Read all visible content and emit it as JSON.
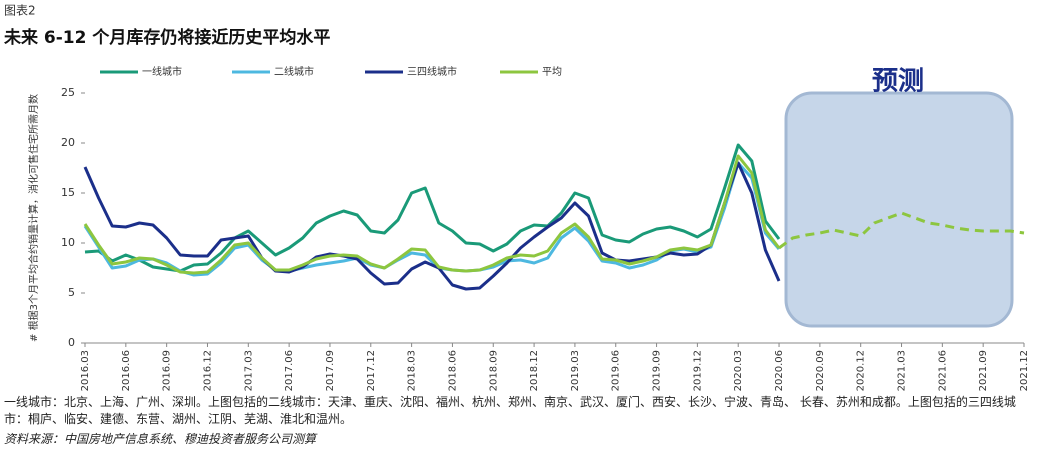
{
  "chart_data": {
    "type": "line",
    "figure_label": "图表2",
    "title": "未来 6-12 个月库存仍将接近历史平均水平",
    "y_label": "# 根据3个月平均合约销量计算，消化可售住宅所需月数",
    "legend": "top",
    "ylim": [
      0,
      25
    ],
    "yticks": [
      0,
      5,
      10,
      15,
      20,
      25
    ],
    "categories": [
      "2016.03",
      null,
      null,
      "2016.06",
      null,
      null,
      "2016.09",
      null,
      null,
      "2016.12",
      null,
      null,
      "2017.03",
      null,
      null,
      "2017.06",
      null,
      null,
      "2017.09",
      null,
      null,
      "2017.12",
      null,
      null,
      "2018.03",
      null,
      null,
      "2018.06",
      null,
      null,
      "2018.09",
      null,
      null,
      "2018.12",
      null,
      null,
      "2019.03",
      null,
      null,
      "2019.06",
      null,
      null,
      "2019.09",
      null,
      null,
      "2019.12",
      null,
      null,
      "2020.03",
      null,
      null,
      "2020.06",
      null,
      null,
      "2020.09",
      null,
      null,
      "2020.12",
      null,
      null,
      "2021.03",
      null,
      null,
      "2021.06",
      null,
      null,
      "2021.09",
      null,
      null,
      "2021.12"
    ],
    "series": [
      {
        "name": "一线城市",
        "color": "#1a9a78",
        "values": [
          9.1,
          9.2,
          8.2,
          8.8,
          8.3,
          7.6,
          7.4,
          7.2,
          7.8,
          7.9,
          9.0,
          10.5,
          11.2,
          10.0,
          8.8,
          9.5,
          10.5,
          12.0,
          12.7,
          13.2,
          12.8,
          11.2,
          11.0,
          12.3,
          15.0,
          15.5,
          12.0,
          11.2,
          10.0,
          9.9,
          9.2,
          9.9,
          11.2,
          11.8,
          11.7,
          13.0,
          15.0,
          14.5,
          10.8,
          10.3,
          10.1,
          10.9,
          11.4,
          11.6,
          11.2,
          10.6,
          11.4,
          15.5,
          19.8,
          18.2,
          12.2,
          10.4,
          null,
          null,
          null,
          null,
          null,
          null,
          null,
          null,
          null,
          null,
          null,
          null,
          null,
          null,
          null,
          null,
          null,
          null
        ]
      },
      {
        "name": "二线城市",
        "color": "#4db8e0",
        "values": [
          11.7,
          9.6,
          7.5,
          7.7,
          8.3,
          8.4,
          8.0,
          7.2,
          6.8,
          6.9,
          8.0,
          9.5,
          9.8,
          8.3,
          7.3,
          7.2,
          7.5,
          7.8,
          8.0,
          8.2,
          8.5,
          7.8,
          7.5,
          8.3,
          9.0,
          8.8,
          7.5,
          7.3,
          7.2,
          7.3,
          7.6,
          8.2,
          8.3,
          8.0,
          8.5,
          10.5,
          11.5,
          10.2,
          8.2,
          8.0,
          7.5,
          7.8,
          8.3,
          9.2,
          9.4,
          9.1,
          9.6,
          13.5,
          18.0,
          16.5,
          11.0,
          9.4,
          null,
          null,
          null,
          null,
          null,
          null,
          null,
          null,
          null,
          null,
          null,
          null,
          null,
          null,
          null,
          null,
          null,
          null
        ]
      },
      {
        "name": "三四线城市",
        "color": "#1b2f8a",
        "values": [
          17.6,
          14.5,
          11.7,
          11.6,
          12.0,
          11.8,
          10.5,
          8.8,
          8.7,
          8.7,
          10.3,
          10.5,
          10.7,
          8.5,
          7.2,
          7.1,
          7.6,
          8.6,
          8.9,
          8.7,
          8.4,
          7.0,
          5.9,
          6.0,
          7.4,
          8.1,
          7.5,
          5.8,
          5.4,
          5.5,
          6.7,
          8.0,
          9.5,
          10.6,
          11.6,
          12.5,
          14.0,
          12.7,
          9.0,
          8.3,
          8.2,
          8.4,
          8.6,
          9.0,
          8.8,
          8.9,
          9.8,
          14.0,
          18.0,
          15.0,
          9.3,
          6.2,
          null,
          null,
          null,
          null,
          null,
          null,
          null,
          null,
          null,
          null,
          null,
          null,
          null,
          null,
          null,
          null,
          null,
          null
        ]
      },
      {
        "name": "平均",
        "color": "#8dc63f",
        "values": [
          11.9,
          9.8,
          7.9,
          8.1,
          8.5,
          8.4,
          7.8,
          7.1,
          7.0,
          7.1,
          8.3,
          9.8,
          10.0,
          8.5,
          7.3,
          7.3,
          7.8,
          8.4,
          8.7,
          8.8,
          8.7,
          7.9,
          7.5,
          8.4,
          9.4,
          9.3,
          7.6,
          7.3,
          7.2,
          7.3,
          7.8,
          8.5,
          8.8,
          8.7,
          9.2,
          11.0,
          11.9,
          10.6,
          8.4,
          8.3,
          7.9,
          8.2,
          8.6,
          9.3,
          9.5,
          9.3,
          9.8,
          14.0,
          18.7,
          17.0,
          11.3,
          9.5,
          null,
          null,
          null,
          null,
          null,
          null,
          null,
          null,
          null,
          null,
          null,
          null,
          null,
          null,
          null,
          null,
          null,
          null
        ]
      }
    ],
    "forecast": {
      "label": "预测",
      "color": "#8dc63f",
      "values": [
        null,
        null,
        null,
        null,
        null,
        null,
        null,
        null,
        null,
        null,
        null,
        null,
        null,
        null,
        null,
        null,
        null,
        null,
        null,
        null,
        null,
        null,
        null,
        null,
        null,
        null,
        null,
        null,
        null,
        null,
        null,
        null,
        null,
        null,
        null,
        null,
        null,
        null,
        null,
        null,
        null,
        null,
        null,
        null,
        null,
        null,
        null,
        null,
        null,
        null,
        null,
        9.5,
        10.5,
        10.8,
        11.0,
        11.3,
        11.0,
        10.7,
        12.0,
        12.5,
        13.0,
        12.5,
        12.0,
        11.8,
        11.5,
        11.3,
        11.2,
        11.2,
        11.2,
        11.0
      ]
    },
    "notes": "一线城市：北京、上海、广州、深圳。上图包括的二线城市：天津、重庆、沈阳、福州、杭州、郑州、南京、武汉、厦门、西安、长沙、宁波、青岛、 长春、苏州和成都。上图包括的三四线城市：桐庐、临安、建德、东营、湖州、江阴、芜湖、淮北和温州。",
    "source": "资料来源：中国房地产信息系统、穆迪投资者服务公司测算"
  }
}
